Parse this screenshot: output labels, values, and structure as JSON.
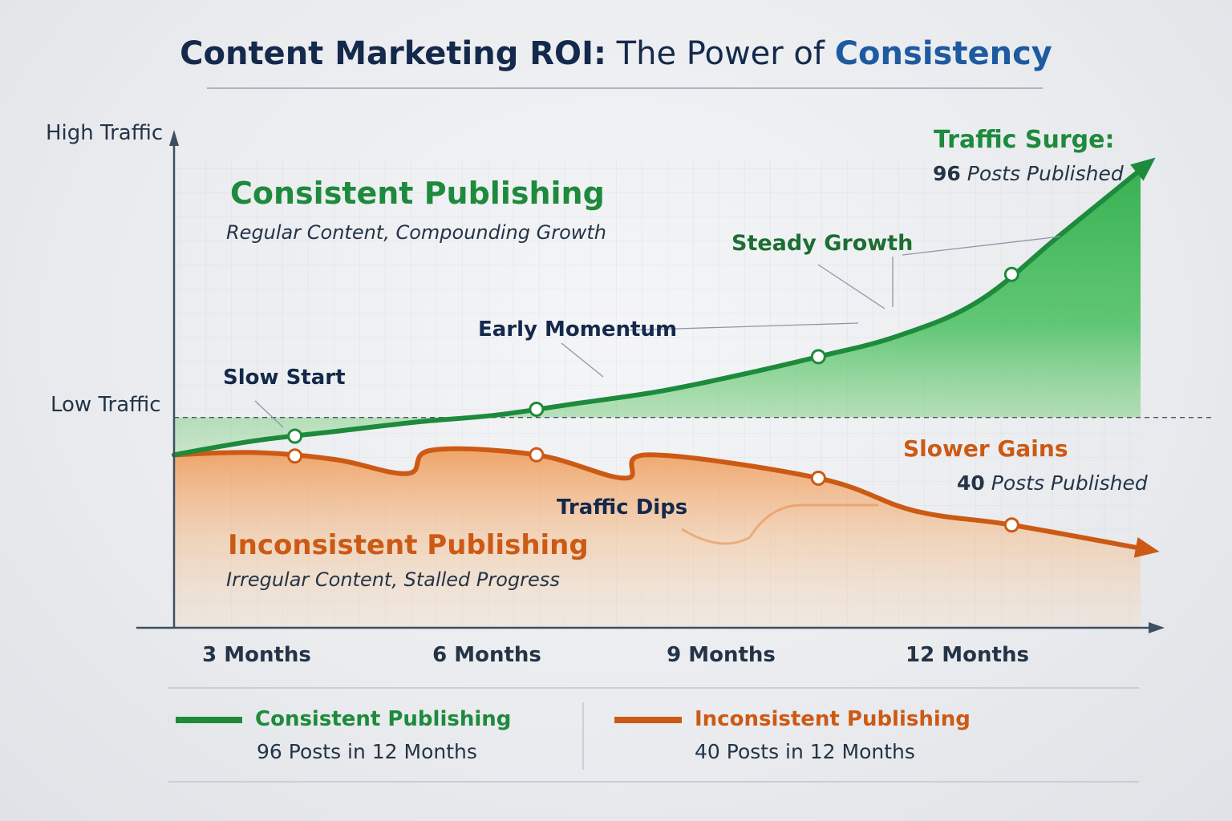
{
  "title": {
    "part1": "Content Marketing ROI:",
    "part2": " The Power of ",
    "part3": "Consistency"
  },
  "colors": {
    "navy": "#14294b",
    "blue": "#1d5aa0",
    "green": "#1d8a3c",
    "green_fill": "#3cba55",
    "orange": "#cc5a14",
    "orange_fill": "#f2a45c",
    "axis": "#3f4f62"
  },
  "chart_data": {
    "type": "area",
    "y_axis_labels": {
      "high": "High Traffic",
      "low": "Low Traffic"
    },
    "x_tick_labels": [
      "3 Months",
      "6 Months",
      "9 Months",
      "12 Months"
    ],
    "x_tick_months": [
      3,
      6,
      9,
      12
    ],
    "x_range": [
      0,
      12
    ],
    "y_range": [
      0,
      100
    ],
    "reference_line": {
      "y": 45,
      "style": "dashed"
    },
    "series": [
      {
        "name": "Consistent Publishing",
        "color": "#1d8a3c",
        "x": [
          0,
          1,
          2,
          3,
          4,
          5,
          6,
          7,
          8,
          9,
          10,
          11,
          12
        ],
        "y": [
          37,
          40,
          42,
          44,
          45.5,
          48,
          50.5,
          54,
          58,
          62.5,
          70,
          84,
          98
        ],
        "markers_x": [
          1.5,
          4.5,
          8,
          10.4
        ]
      },
      {
        "name": "Inconsistent Publishing",
        "color": "#cc5a14",
        "x": [
          0,
          1,
          2,
          2.9,
          3.2,
          4.5,
          5.6,
          5.9,
          8,
          9.2,
          10.4,
          12
        ],
        "y": [
          37,
          37.5,
          36,
          33,
          38,
          37,
          32,
          37,
          32,
          25,
          22,
          17
        ],
        "markers_x": [
          1.5,
          4.5,
          8,
          10.4
        ]
      }
    ],
    "annotations": [
      {
        "text": "Slow Start",
        "color": "navy"
      },
      {
        "text": "Early Momentum",
        "color": "navy"
      },
      {
        "text": "Steady Growth",
        "color": "green"
      },
      {
        "text": "Traffic Dips",
        "color": "navy"
      }
    ],
    "callouts": {
      "surge": {
        "title": "Traffic Surge:",
        "count": "96",
        "suffix": " Posts Published"
      },
      "slower": {
        "title": "Slower Gains",
        "count": "40",
        "suffix": " Posts Published"
      }
    },
    "series_labels": {
      "consistent": {
        "title": "Consistent Publishing",
        "subtitle": "Regular Content, Compounding Growth"
      },
      "inconsistent": {
        "title": "Inconsistent Publishing",
        "subtitle": "Irregular Content, Stalled Progress"
      }
    },
    "legend": [
      {
        "name": "Consistent Publishing",
        "detail": "96 Posts in 12 Months",
        "color": "#1d8a3c"
      },
      {
        "name": "Inconsistent Publishing",
        "detail": "40 Posts in 12 Months",
        "color": "#cc5a14"
      }
    ]
  }
}
